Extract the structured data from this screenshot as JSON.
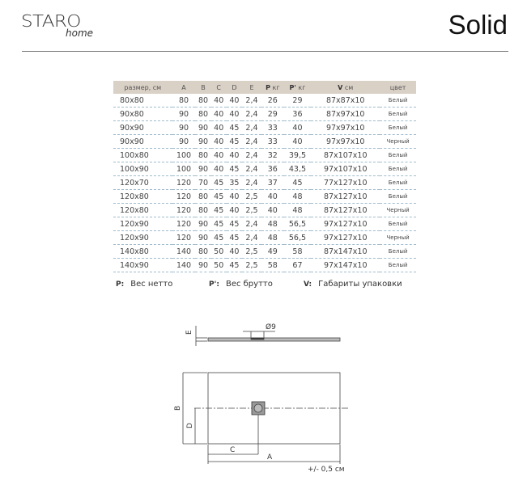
{
  "header": {
    "logo_text": "STARO",
    "logo_sub": "home",
    "title": "Solid"
  },
  "table": {
    "headers": [
      "размер, см",
      "A",
      "B",
      "C",
      "D",
      "E",
      "P",
      "кг",
      "P'",
      "кг",
      "V",
      "см",
      "цвет"
    ],
    "rows": [
      [
        "80x80",
        "80",
        "80",
        "40",
        "40",
        "2,4",
        "26",
        "29",
        "87x87x10",
        "Белый"
      ],
      [
        "90x80",
        "90",
        "80",
        "40",
        "40",
        "2,4",
        "29",
        "36",
        "87x97x10",
        "Белый"
      ],
      [
        "90x90",
        "90",
        "90",
        "40",
        "45",
        "2,4",
        "33",
        "40",
        "97x97x10",
        "Белый"
      ],
      [
        "90x90",
        "90",
        "90",
        "40",
        "45",
        "2,4",
        "33",
        "40",
        "97x97x10",
        "Черный"
      ],
      [
        "100x80",
        "100",
        "80",
        "40",
        "40",
        "2,4",
        "32",
        "39,5",
        "87x107x10",
        "Белый"
      ],
      [
        "100x90",
        "100",
        "90",
        "40",
        "45",
        "2,4",
        "36",
        "43,5",
        "97x107x10",
        "Белый"
      ],
      [
        "120x70",
        "120",
        "70",
        "45",
        "35",
        "2,4",
        "37",
        "45",
        "77x127x10",
        "Белый"
      ],
      [
        "120x80",
        "120",
        "80",
        "45",
        "40",
        "2,5",
        "40",
        "48",
        "87x127x10",
        "Белый"
      ],
      [
        "120x80",
        "120",
        "80",
        "45",
        "40",
        "2,5",
        "40",
        "48",
        "87x127x10",
        "Черный"
      ],
      [
        "120x90",
        "120",
        "90",
        "45",
        "45",
        "2,4",
        "48",
        "56,5",
        "97x127x10",
        "Белый"
      ],
      [
        "120x90",
        "120",
        "90",
        "45",
        "45",
        "2,4",
        "48",
        "56,5",
        "97x127x10",
        "Черный"
      ],
      [
        "140x80",
        "140",
        "80",
        "50",
        "40",
        "2,5",
        "49",
        "58",
        "87x147x10",
        "Белый"
      ],
      [
        "140x90",
        "140",
        "90",
        "50",
        "45",
        "2,5",
        "58",
        "67",
        "97x147x10",
        "Белый"
      ]
    ]
  },
  "legend": [
    {
      "key": "P:",
      "text": "Вес нетто"
    },
    {
      "key": "P':",
      "text": "Вес брутто"
    },
    {
      "key": "V:",
      "text": "Габариты упаковки"
    }
  ],
  "diagram": {
    "labels": {
      "E": "E",
      "diameter": "Ø9",
      "A": "A",
      "B": "B",
      "C": "C",
      "D": "D"
    },
    "tolerance": "+/- 0,5 см"
  }
}
